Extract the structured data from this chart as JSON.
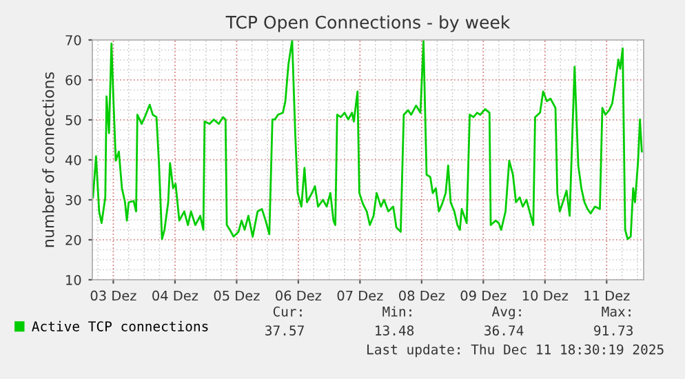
{
  "chart_data": {
    "type": "line",
    "title": "TCP Open Connections - by week",
    "ylabel": "number of connections",
    "x": [
      2.67,
      2.72,
      2.77,
      2.81,
      2.87,
      2.89,
      2.93,
      2.97,
      3.0,
      3.04,
      3.09,
      3.14,
      3.19,
      3.22,
      3.25,
      3.33,
      3.37,
      3.39,
      3.46,
      3.51,
      3.59,
      3.64,
      3.7,
      3.74,
      3.79,
      3.83,
      3.89,
      3.92,
      3.97,
      4.01,
      4.07,
      4.15,
      4.21,
      4.26,
      4.33,
      4.41,
      4.46,
      4.48,
      4.56,
      4.63,
      4.71,
      4.78,
      4.82,
      4.84,
      4.89,
      4.95,
      5.03,
      5.08,
      5.13,
      5.19,
      5.26,
      5.34,
      5.41,
      5.47,
      5.53,
      5.58,
      5.62,
      5.67,
      5.75,
      5.79,
      5.84,
      5.9,
      5.95,
      5.99,
      6.05,
      6.1,
      6.14,
      6.22,
      6.27,
      6.32,
      6.4,
      6.46,
      6.52,
      6.57,
      6.6,
      6.63,
      6.69,
      6.75,
      6.81,
      6.87,
      6.9,
      6.96,
      6.99,
      7.05,
      7.11,
      7.16,
      7.22,
      7.27,
      7.34,
      7.39,
      7.46,
      7.54,
      7.59,
      7.66,
      7.71,
      7.78,
      7.83,
      7.91,
      7.98,
      8.03,
      8.08,
      8.14,
      8.18,
      8.23,
      8.28,
      8.33,
      8.39,
      8.43,
      8.47,
      8.53,
      8.58,
      8.62,
      8.65,
      8.73,
      8.78,
      8.84,
      8.9,
      8.95,
      9.03,
      9.1,
      9.12,
      9.2,
      9.25,
      9.29,
      9.36,
      9.42,
      9.48,
      9.53,
      9.59,
      9.64,
      9.7,
      9.75,
      9.81,
      9.84,
      9.92,
      9.97,
      10.03,
      10.09,
      10.17,
      10.2,
      10.24,
      10.29,
      10.35,
      10.4,
      10.48,
      10.54,
      10.59,
      10.64,
      10.69,
      10.74,
      10.81,
      10.89,
      10.93,
      10.98,
      11.04,
      11.09,
      11.13,
      11.19,
      11.22,
      11.26,
      11.3,
      11.34,
      11.39,
      11.43,
      11.46,
      11.51,
      11.54,
      11.57
    ],
    "series": [
      {
        "name": "Active TCP connections",
        "color": "#00cc00",
        "values": [
          30.6,
          40.9,
          27.1,
          24.2,
          30.6,
          55.9,
          46.7,
          69.1,
          55.9,
          39.8,
          42.1,
          32.9,
          29.4,
          24.8,
          29.4,
          29.7,
          27.1,
          51.3,
          49,
          50.7,
          53.8,
          51.3,
          50.7,
          39.2,
          20.2,
          22.5,
          29.4,
          39.2,
          32.9,
          34.0,
          24.8,
          27.1,
          23.7,
          27.1,
          23.7,
          26.0,
          22.5,
          49.6,
          49,
          50.1,
          49,
          50.7,
          50.1,
          23.7,
          22.5,
          20.8,
          22,
          24.8,
          22.5,
          26,
          20.8,
          27.1,
          27.7,
          24.8,
          21.4,
          50.1,
          50.1,
          51.3,
          51.8,
          54.7,
          63.9,
          69.9,
          46.7,
          31.7,
          28.3,
          38,
          29.4,
          31.7,
          33.4,
          28.3,
          30,
          28.3,
          31.7,
          24.8,
          23.7,
          51.3,
          50.7,
          51.8,
          50.1,
          51.8,
          49.6,
          57.1,
          31.7,
          28.9,
          27.1,
          23.7,
          26,
          31.7,
          28.3,
          30,
          27.1,
          28.3,
          23.1,
          22,
          51.3,
          52.4,
          51.3,
          53.6,
          51.8,
          69.7,
          36.3,
          35.7,
          31.7,
          32.9,
          27.1,
          28.9,
          31.7,
          38.6,
          29.4,
          27.1,
          23.7,
          22.5,
          27.7,
          24.2,
          51.3,
          50.7,
          51.8,
          51.3,
          52.7,
          51.8,
          23.7,
          24.8,
          24.2,
          22.5,
          27.1,
          39.8,
          36.3,
          29.4,
          30.6,
          28.3,
          30,
          27.1,
          23.7,
          50.7,
          51.8,
          57.1,
          54.7,
          55.3,
          53,
          31.7,
          27.1,
          29.4,
          32.3,
          26,
          63.3,
          38.6,
          32.9,
          29.4,
          27.7,
          26.6,
          28.3,
          27.7,
          53,
          51.3,
          52.4,
          54.1,
          58.2,
          65.1,
          62.8,
          67.9,
          22.5,
          20.2,
          20.8,
          32.9,
          29.4,
          39.8,
          50.1,
          42.1
        ]
      }
    ],
    "xlim": [
      2.66,
      11.6
    ],
    "xticks": [
      {
        "value": 3,
        "label": "03 Dez"
      },
      {
        "value": 4,
        "label": "04 Dez"
      },
      {
        "value": 5,
        "label": "05 Dez"
      },
      {
        "value": 6,
        "label": "06 Dez"
      },
      {
        "value": 7,
        "label": "07 Dez"
      },
      {
        "value": 8,
        "label": "08 Dez"
      },
      {
        "value": 9,
        "label": "09 Dez"
      },
      {
        "value": 10,
        "label": "10 Dez"
      },
      {
        "value": 11,
        "label": "11 Dez"
      }
    ],
    "ylim": [
      10,
      70
    ],
    "yticks": [
      10,
      20,
      30,
      40,
      50,
      60,
      70
    ],
    "grid": true,
    "legend": "bottom",
    "line_style": "solid",
    "annotations": [
      "Cur:",
      "37.57",
      "Min:",
      "13.48",
      "Avg:",
      "36.74",
      "Max:",
      "91.73",
      "Last update: Thu Dec 11 18:30:19 2025"
    ]
  }
}
